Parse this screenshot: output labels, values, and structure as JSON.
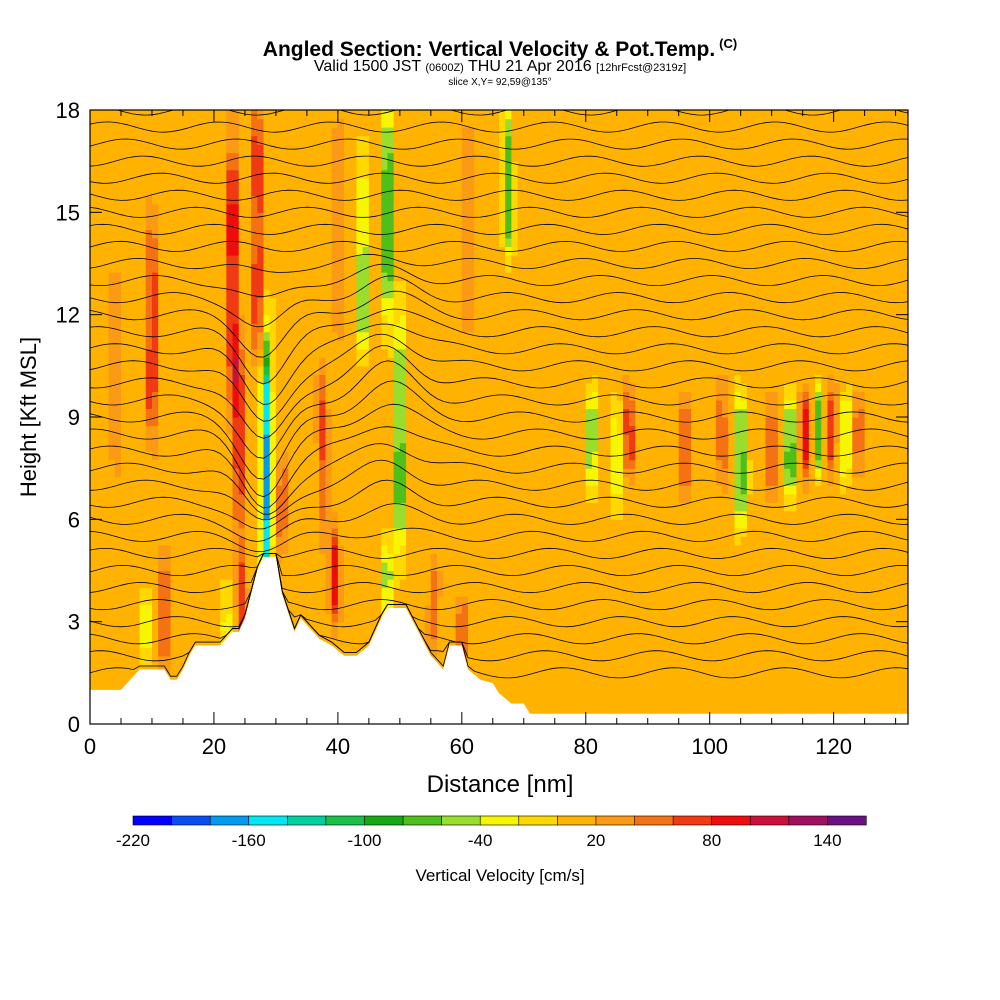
{
  "header": {
    "title": "Angled Section: Vertical Velocity & Pot.Temp.",
    "title_mark": "(C)",
    "valid_prefix": "Valid 1500 JST",
    "valid_utc": "(0600Z)",
    "valid_date": "THU 21 Apr 2016",
    "valid_fcst": "[12hrFcst@2319z]",
    "slice": "slice X,Y= 92,59@135°"
  },
  "chart_data": {
    "type": "heatmap",
    "title": "Angled Section: Vertical Velocity & Pot.Temp.",
    "xlabel": "Distance [nm]",
    "ylabel": "Height [Kft MSL]",
    "xlim": [
      0,
      132
    ],
    "ylim": [
      0,
      18
    ],
    "x_ticks": [
      0,
      20,
      40,
      60,
      80,
      100,
      120
    ],
    "y_ticks": [
      0,
      3,
      6,
      9,
      12,
      15,
      18
    ],
    "colorbar": {
      "label": "Vertical Velocity [cm/s]",
      "tick_values": [
        -220,
        -160,
        -100,
        -40,
        20,
        80,
        140
      ],
      "levels": [
        -220,
        -200,
        -180,
        -160,
        -140,
        -120,
        -100,
        -80,
        -60,
        -40,
        -20,
        0,
        20,
        40,
        60,
        80,
        100,
        120,
        140,
        160
      ],
      "colors": [
        "#0000ff",
        "#0a4df5",
        "#009bf0",
        "#00e8f2",
        "#00d0a0",
        "#19c04a",
        "#17a817",
        "#4fbf1a",
        "#99dd2e",
        "#f6f600",
        "#ffd800",
        "#ffb200",
        "#fb9a14",
        "#f57214",
        "#ef3a14",
        "#ee0c0c",
        "#c8123c",
        "#a01060",
        "#6a1080"
      ]
    },
    "background_w": 10,
    "w_features": [
      {
        "x": 10,
        "z0": 8.5,
        "z1": 14.5,
        "w": 75
      },
      {
        "x": 12,
        "z0": 2.0,
        "z1": 5.0,
        "w": 60
      },
      {
        "x": 9,
        "z0": 2.2,
        "z1": 3.8,
        "w": -45
      },
      {
        "x": 23,
        "z0": 10.0,
        "z1": 17.0,
        "w": 95
      },
      {
        "x": 24,
        "z0": 6.0,
        "z1": 11.0,
        "w": 80
      },
      {
        "x": 24.5,
        "z0": 2.0,
        "z1": 5.0,
        "w": 60
      },
      {
        "x": 22,
        "z0": 2.5,
        "z1": 4.0,
        "w": -40
      },
      {
        "x": 28.5,
        "z0": 4.0,
        "z1": 11.0,
        "w": -170
      },
      {
        "x": 27,
        "z0": 11.0,
        "z1": 18.0,
        "w": 75
      },
      {
        "x": 31,
        "z0": 5.5,
        "z1": 7.5,
        "w": 55
      },
      {
        "x": 39.5,
        "z0": 3.5,
        "z1": 5.5,
        "w": 90
      },
      {
        "x": 37.5,
        "z0": 6.0,
        "z1": 10.0,
        "w": 55
      },
      {
        "x": 44,
        "z0": 11.0,
        "z1": 16.0,
        "w": -80
      },
      {
        "x": 48,
        "z0": 12.0,
        "z1": 18.0,
        "w": -110
      },
      {
        "x": 50,
        "z0": 5.0,
        "z1": 11.5,
        "w": -100
      },
      {
        "x": 48,
        "z0": 2.5,
        "z1": 5.0,
        "w": -70
      },
      {
        "x": 55.5,
        "z0": 2.5,
        "z1": 4.5,
        "w": 45
      },
      {
        "x": 60,
        "z0": 2.0,
        "z1": 3.5,
        "w": 50
      },
      {
        "x": 67.5,
        "z0": 14.0,
        "z1": 18.0,
        "w": -80
      },
      {
        "x": 81,
        "z0": 7.0,
        "z1": 9.5,
        "w": -80
      },
      {
        "x": 85,
        "z0": 6.5,
        "z1": 9.5,
        "w": -50
      },
      {
        "x": 87,
        "z0": 7.5,
        "z1": 9.5,
        "w": 75
      },
      {
        "x": 96,
        "z0": 7.0,
        "z1": 9.5,
        "w": 60
      },
      {
        "x": 102,
        "z0": 7.5,
        "z1": 10.0,
        "w": 50
      },
      {
        "x": 105,
        "z0": 6.0,
        "z1": 9.5,
        "w": -100
      },
      {
        "x": 110,
        "z0": 7.0,
        "z1": 9.5,
        "w": 55
      },
      {
        "x": 113,
        "z0": 7.0,
        "z1": 9.5,
        "w": -100
      },
      {
        "x": 115.5,
        "z0": 7.5,
        "z1": 9.5,
        "w": 75
      },
      {
        "x": 117.5,
        "z0": 7.5,
        "z1": 9.5,
        "w": -80
      },
      {
        "x": 119.5,
        "z0": 7.5,
        "z1": 9.5,
        "w": 65
      },
      {
        "x": 122,
        "z0": 7.5,
        "z1": 9.5,
        "w": -70
      },
      {
        "x": 124,
        "z0": 8.0,
        "z1": 9.5,
        "w": 55
      },
      {
        "x": 4,
        "z0": 8.0,
        "z1": 13.0,
        "w": 35
      },
      {
        "x": 40,
        "z0": 12.0,
        "z1": 17.0,
        "w": 35
      },
      {
        "x": 61,
        "z0": 12.0,
        "z1": 17.0,
        "w": 30
      }
    ],
    "terrain": [
      [
        0,
        1.0
      ],
      [
        5,
        1.0
      ],
      [
        6,
        1.2
      ],
      [
        8,
        1.6
      ],
      [
        10,
        1.6
      ],
      [
        12,
        1.6
      ],
      [
        13,
        1.3
      ],
      [
        14,
        1.3
      ],
      [
        15,
        1.6
      ],
      [
        16,
        2.0
      ],
      [
        17,
        2.3
      ],
      [
        21,
        2.3
      ],
      [
        23,
        2.7
      ],
      [
        24,
        2.7
      ],
      [
        25,
        3.1
      ],
      [
        26,
        3.8
      ],
      [
        27,
        4.5
      ],
      [
        28,
        4.9
      ],
      [
        30,
        4.9
      ],
      [
        31,
        3.8
      ],
      [
        33,
        2.7
      ],
      [
        34,
        3.1
      ],
      [
        36,
        2.7
      ],
      [
        37,
        2.5
      ],
      [
        39,
        2.3
      ],
      [
        41,
        2.0
      ],
      [
        43,
        2.0
      ],
      [
        45,
        2.3
      ],
      [
        47,
        3.1
      ],
      [
        48,
        3.4
      ],
      [
        51,
        3.4
      ],
      [
        53,
        2.7
      ],
      [
        55,
        2.0
      ],
      [
        57,
        1.6
      ],
      [
        58,
        2.3
      ],
      [
        60,
        2.3
      ],
      [
        61,
        1.6
      ],
      [
        63,
        1.3
      ],
      [
        65,
        1.2
      ],
      [
        66,
        0.9
      ],
      [
        68,
        0.6
      ],
      [
        70,
        0.6
      ],
      [
        71,
        0.3
      ],
      [
        132,
        0.3
      ]
    ]
  }
}
